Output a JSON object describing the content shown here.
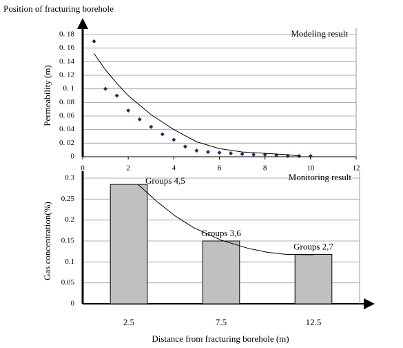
{
  "chart_data": [
    {
      "type": "scatter",
      "title": "Position of fracturing borehole",
      "ylabel": "Permeability (m)",
      "annotation": "Modeling result",
      "x": [
        0.5,
        1,
        1.5,
        2,
        2.5,
        3,
        3.5,
        4,
        4.5,
        5,
        5.5,
        6,
        6.5,
        7,
        7.5,
        8,
        8.5,
        9,
        9.5,
        10
      ],
      "values": [
        0.17,
        0.1,
        0.09,
        0.068,
        0.055,
        0.044,
        0.033,
        0.025,
        0.015,
        0.009,
        0.007,
        0.006,
        0.005,
        0.004,
        0.003,
        0.003,
        0.002,
        0.001,
        0.001,
        0.001
      ],
      "color": "#1f2a6b",
      "trend": {
        "x": [
          0.5,
          1,
          1.5,
          2,
          3,
          4,
          5,
          6,
          7,
          8,
          9,
          9.5
        ],
        "values": [
          0.152,
          0.128,
          0.108,
          0.09,
          0.062,
          0.04,
          0.022,
          0.012,
          0.007,
          0.005,
          0.003,
          0.001
        ],
        "color": "#000000"
      },
      "xlim": [
        0,
        12
      ],
      "xticks": [
        0,
        2,
        4,
        6,
        8,
        10,
        12
      ],
      "ylim": [
        0,
        0.18
      ],
      "yticks": [
        0,
        {
          "value": 0.02,
          "label": "0. 02"
        },
        {
          "value": 0.04,
          "label": "0. 04"
        },
        {
          "value": 0.06,
          "label": "0. 06"
        },
        {
          "value": 0.08,
          "label": "0. 08"
        },
        {
          "value": 0.1,
          "label": "0. 1"
        },
        {
          "value": 0.12,
          "label": "0. 12"
        },
        {
          "value": 0.14,
          "label": "0. 14"
        },
        {
          "value": 0.16,
          "label": "0. 16"
        },
        {
          "value": 0.18,
          "label": "0. 18"
        }
      ],
      "grid": true
    },
    {
      "type": "bar",
      "ylabel": "Gas concentration(%)",
      "xlabel": "Distance from fracturing borehole (m)",
      "annotation": "Monitoring result",
      "x": [
        2.5,
        7.5,
        12.5
      ],
      "values": [
        0.285,
        0.15,
        0.118
      ],
      "bar_labels": [
        "Groups 4,5",
        "Groups 3,6",
        "Groups 2,7"
      ],
      "color": "#c0c0c0",
      "trend": {
        "x": [
          3,
          4,
          5,
          6,
          7.5,
          9,
          10,
          11,
          12.5
        ],
        "values": [
          0.285,
          0.245,
          0.21,
          0.182,
          0.152,
          0.132,
          0.123,
          0.118,
          0.117
        ],
        "color": "#000000"
      },
      "xlim": [
        0,
        15
      ],
      "ylim": [
        0,
        0.3
      ],
      "yticks": [
        0,
        0.05,
        0.1,
        0.15,
        0.2,
        0.25,
        0.3
      ],
      "grid": true
    }
  ]
}
